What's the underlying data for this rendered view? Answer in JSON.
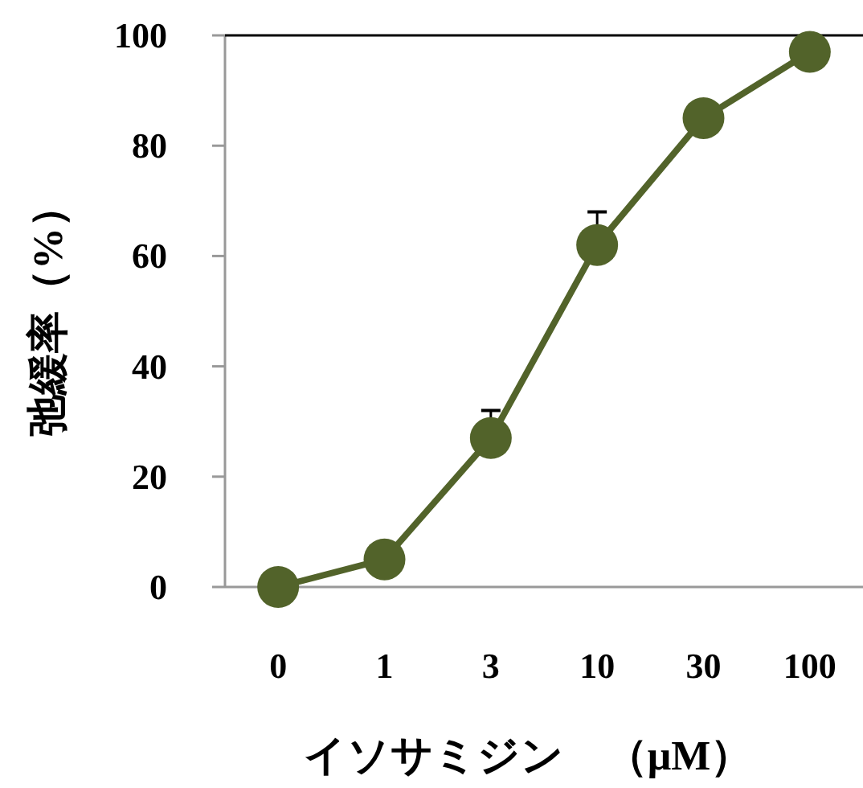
{
  "chart_data": {
    "type": "line",
    "xlabel": "イソサミジン　（μM）",
    "ylabel": "弛緩率（%）",
    "categories": [
      "0",
      "1",
      "3",
      "10",
      "30",
      "100"
    ],
    "series": [
      {
        "color": "#52632a",
        "values": [
          0,
          5,
          27,
          62,
          85,
          97
        ],
        "errors": [
          null,
          null,
          [
            27,
            32
          ],
          [
            62,
            68
          ],
          null,
          null
        ]
      }
    ],
    "ylim": [
      0,
      100
    ],
    "yticks": [
      0,
      20,
      40,
      60,
      80,
      100
    ],
    "marker": "circle",
    "line_style": "solid",
    "grid": false
  }
}
